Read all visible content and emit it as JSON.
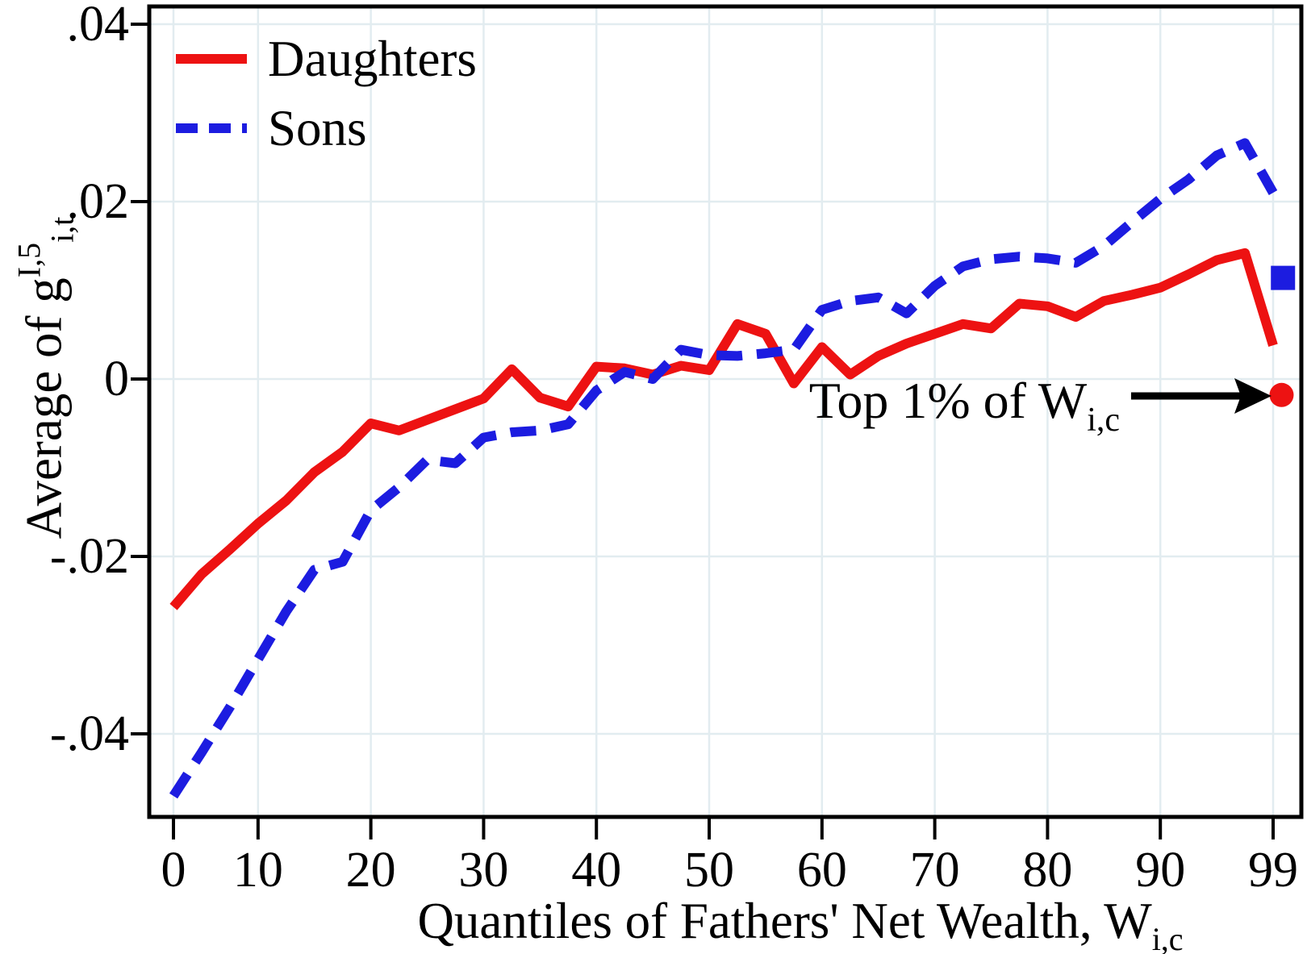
{
  "colors": {
    "daughters": "#ed1212",
    "sons": "#1c1ce0",
    "grid": "#e2ecf0",
    "axis": "#000000",
    "background": "#ffffff"
  },
  "legend": {
    "items": [
      {
        "label": "Daughters",
        "style": "solid",
        "color": "#ed1212"
      },
      {
        "label": "Sons",
        "style": "dashed",
        "color": "#1c1ce0"
      }
    ]
  },
  "y_axis": {
    "title_prefix": "Average of g",
    "title_sup": "I,5",
    "title_sub": "i,t",
    "ticks": [
      {
        "v": 0.04,
        "label": ".04"
      },
      {
        "v": 0.02,
        "label": ".02"
      },
      {
        "v": 0.0,
        "label": "0"
      },
      {
        "v": -0.02,
        "label": "-.02"
      },
      {
        "v": -0.04,
        "label": "-.04"
      }
    ]
  },
  "x_axis": {
    "title_prefix": "Quantiles of Fathers' Net Wealth, W",
    "title_sub": "i,c",
    "ticks": [
      {
        "bin": 0,
        "label": "0"
      },
      {
        "bin": 3,
        "label": "10"
      },
      {
        "bin": 7,
        "label": "20"
      },
      {
        "bin": 11,
        "label": "30"
      },
      {
        "bin": 15,
        "label": "40"
      },
      {
        "bin": 19,
        "label": "50"
      },
      {
        "bin": 23,
        "label": "60"
      },
      {
        "bin": 27,
        "label": "70"
      },
      {
        "bin": 31,
        "label": "80"
      },
      {
        "bin": 35,
        "label": "90"
      },
      {
        "bin": 39,
        "label": "99"
      }
    ]
  },
  "annotation": {
    "prefix": "Top 1% of W",
    "sub": "i,c"
  },
  "chart_data": {
    "type": "line",
    "title": "",
    "xlabel": "Quantiles of Fathers' Net Wealth, W_{i,c}",
    "ylabel": "Average of g^{I,5}_{i,t}",
    "x_structure": "40 equally spaced quantile bins; tick labels 0,10,20,...,90,99 placed at bins 0,3,7,11,15,19,23,27,31,35,39",
    "ylim": [
      -0.0494,
      0.042
    ],
    "grid": true,
    "legend_position": "top-left",
    "series": [
      {
        "name": "Daughters",
        "color": "#ed1212",
        "line_style": "solid",
        "values": [
          -0.0257,
          -0.022,
          -0.0192,
          -0.0163,
          -0.0137,
          -0.0105,
          -0.0082,
          -0.005,
          -0.0058,
          -0.0046,
          -0.0034,
          -0.0022,
          0.0011,
          -0.0021,
          -0.0031,
          0.0014,
          0.0012,
          0.0005,
          0.0015,
          0.001,
          0.0062,
          0.0051,
          -0.0005,
          0.0036,
          0.0005,
          0.0026,
          0.004,
          0.0051,
          0.0062,
          0.0057,
          0.0085,
          0.0082,
          0.007,
          0.0088,
          0.0095,
          0.0103,
          0.0118,
          0.0134,
          0.0142,
          0.0038
        ]
      },
      {
        "name": "Sons",
        "color": "#1c1ce0",
        "line_style": "dashed",
        "values": [
          -0.047,
          -0.0421,
          -0.037,
          -0.0316,
          -0.0262,
          -0.0215,
          -0.0206,
          -0.0148,
          -0.0122,
          -0.0091,
          -0.0095,
          -0.0066,
          -0.006,
          -0.0058,
          -0.0051,
          -0.0013,
          0.0008,
          0.0,
          0.0033,
          0.0027,
          0.0026,
          0.0029,
          0.0033,
          0.0078,
          0.0088,
          0.0092,
          0.0074,
          0.0105,
          0.0127,
          0.0135,
          0.0138,
          0.0136,
          0.0131,
          0.015,
          0.0177,
          0.0203,
          0.0225,
          0.0252,
          0.0266,
          0.021
        ]
      }
    ],
    "markers": [
      {
        "series": "Sons",
        "shape": "square",
        "x_bin": 39.35,
        "value": 0.0114,
        "meaning": "Top 1% of fathers' net wealth, sons"
      },
      {
        "series": "Daughters",
        "shape": "circle",
        "x_bin": 39.3,
        "value": -0.0018,
        "meaning": "Top 1% of fathers' net wealth, daughters (arrow target)"
      }
    ]
  }
}
